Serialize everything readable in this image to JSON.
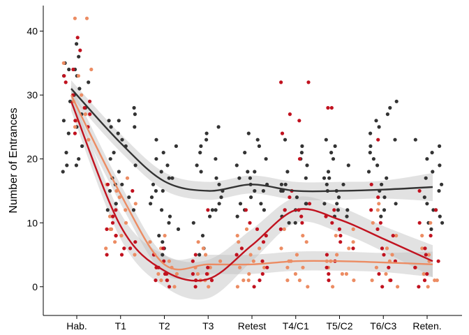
{
  "chart_data": {
    "type": "scatter",
    "ylabel": "Number of Entrances",
    "xlabel": "",
    "categories": [
      "Hab.",
      "T1",
      "T2",
      "T3",
      "Retest",
      "T4/C1",
      "T5/C2",
      "T6/C3",
      "Reten."
    ],
    "ylim": [
      -4.5,
      44
    ],
    "y_ticks": [
      0,
      10,
      20,
      30,
      40
    ],
    "grid": false,
    "legend": "none",
    "series": [
      {
        "color": "#333333",
        "smooth": [
          31,
          22.5,
          16.5,
          15.0,
          16.0,
          15.0,
          15.0,
          15.2,
          15.6
        ],
        "band": [
          1.3,
          1.4,
          1.4,
          1.4,
          1.4,
          1.4,
          1.4,
          1.4,
          2.2
        ],
        "points": [
          [
            38,
            36,
            35,
            34,
            34,
            33,
            33,
            32,
            31,
            30,
            29,
            28,
            27,
            26,
            25,
            24,
            22,
            21,
            20,
            19,
            19,
            18
          ],
          [
            28,
            27,
            26,
            26,
            25,
            25,
            24,
            23,
            22,
            21,
            20,
            19,
            18,
            17,
            16,
            16,
            15,
            14,
            13,
            13,
            12,
            12
          ],
          [
            23,
            22,
            21,
            20,
            19,
            18,
            17,
            17,
            16,
            15,
            15,
            14,
            13,
            12,
            11,
            10,
            9,
            8,
            7,
            6,
            5
          ],
          [
            25,
            24,
            23,
            22,
            21,
            20,
            19,
            18,
            17,
            16,
            15,
            14,
            13,
            12,
            12,
            11,
            10,
            8,
            6,
            5
          ],
          [
            24,
            23,
            22,
            21,
            20,
            19,
            18,
            18,
            17,
            17,
            16,
            16,
            15,
            15,
            14,
            13,
            13,
            12,
            12,
            11
          ],
          [
            23,
            22,
            21,
            20,
            19,
            18,
            17,
            16,
            16,
            15,
            15,
            14,
            13,
            13,
            12,
            12,
            11,
            10,
            10
          ],
          [
            23,
            22,
            21,
            20,
            19,
            18,
            17,
            17,
            16,
            16,
            15,
            15,
            14,
            13,
            13,
            12,
            12,
            11,
            11
          ],
          [
            29,
            28,
            27,
            26,
            25,
            24,
            23,
            22,
            21,
            20,
            19,
            18,
            17,
            16,
            15,
            14,
            13,
            12,
            11
          ],
          [
            23,
            22,
            21,
            20,
            19,
            18,
            17,
            16,
            15,
            14,
            13,
            12,
            12,
            11,
            10,
            10,
            9
          ]
        ]
      },
      {
        "color": "#ec8c63",
        "smooth": [
          30,
          14.5,
          3.5,
          3.5,
          3.5,
          4.0,
          4.0,
          3.8,
          3.5
        ],
        "band": [
          1.5,
          1.5,
          1.5,
          1.5,
          1.5,
          1.5,
          1.5,
          1.5,
          2.0
        ],
        "points": [
          [
            42,
            42,
            35,
            34,
            33,
            30,
            29,
            28,
            27,
            26,
            25,
            23
          ],
          [
            17,
            16,
            15,
            14,
            13,
            12,
            11,
            10,
            9,
            9,
            8,
            7,
            6,
            5
          ],
          [
            8,
            7,
            6,
            5,
            4,
            3,
            3,
            2,
            2,
            1,
            1,
            0
          ],
          [
            7,
            6,
            5,
            4,
            3,
            3,
            2,
            2,
            1,
            1,
            0
          ],
          [
            9,
            8,
            7,
            6,
            5,
            4,
            3,
            3,
            2,
            1,
            1,
            0
          ],
          [
            9,
            8,
            7,
            6,
            5,
            4,
            4,
            3,
            3,
            2,
            1,
            1,
            0
          ],
          [
            9,
            8,
            7,
            6,
            5,
            4,
            4,
            3,
            2,
            2,
            1,
            0
          ],
          [
            13,
            12,
            10,
            8,
            6,
            5,
            4,
            3,
            2,
            1,
            1,
            0
          ],
          [
            10,
            8,
            6,
            5,
            4,
            3,
            2,
            1,
            1,
            0
          ]
        ]
      },
      {
        "color": "#c1121f",
        "smooth": [
          29,
          9.5,
          2.5,
          1.2,
          6.5,
          12.0,
          10.5,
          7.5,
          4.0
        ],
        "band": [
          1.5,
          2.0,
          2.5,
          3.0,
          2.5,
          2.0,
          2.0,
          2.0,
          2.5
        ],
        "points": [
          [
            39,
            37,
            34,
            33,
            32,
            30,
            29,
            28,
            27,
            26,
            25,
            24
          ],
          [
            16,
            15,
            12,
            11,
            10,
            9,
            8,
            8,
            7,
            6,
            6,
            5,
            5
          ],
          [
            6,
            5,
            4,
            3,
            3,
            2,
            2,
            1,
            1,
            0
          ],
          [
            12,
            5,
            4,
            3,
            2,
            2,
            1,
            1,
            0
          ],
          [
            12,
            10,
            9,
            8,
            7,
            6,
            5,
            4,
            3,
            2,
            1,
            0
          ],
          [
            32,
            32,
            27,
            26,
            24,
            20,
            15,
            14,
            13,
            12,
            12,
            11,
            10,
            9
          ],
          [
            28,
            28,
            12,
            11,
            10,
            9,
            8,
            7,
            6,
            5,
            4,
            3,
            2,
            1
          ],
          [
            23,
            16,
            14,
            12,
            10,
            9,
            8,
            6,
            5,
            4,
            3,
            2,
            1,
            0
          ],
          [
            15,
            12,
            10,
            8,
            6,
            5,
            4,
            3,
            2,
            1,
            0
          ]
        ]
      }
    ]
  }
}
